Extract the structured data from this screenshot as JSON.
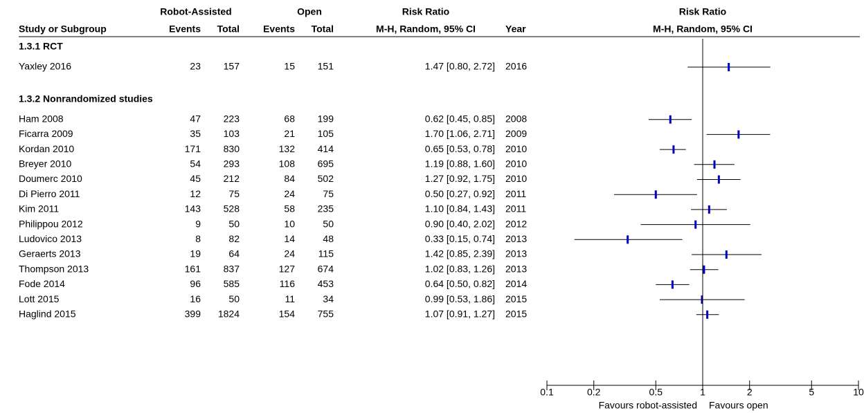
{
  "chart_data": {
    "type": "forest",
    "title": "Risk Ratio",
    "subtitle": "M-H, Random, 95% CI",
    "header": {
      "group1": "Robot-Assisted",
      "group2": "Open",
      "effect": "Risk Ratio",
      "study": "Study or Subgroup",
      "events1": "Events",
      "total1": "Total",
      "events2": "Events",
      "total2": "Total",
      "method": "M-H, Random, 95% CI",
      "year": "Year"
    },
    "groups": [
      {
        "name": "1.3.1 RCT",
        "studies": [
          {
            "name": "Yaxley 2016",
            "events1": 23,
            "total1": 157,
            "events2": 15,
            "total2": 151,
            "rr": 1.47,
            "lo": 0.8,
            "hi": 2.72,
            "ci_label": "1.47 [0.80, 2.72]",
            "year": 2016
          }
        ]
      },
      {
        "name": "1.3.2 Nonrandomized studies",
        "studies": [
          {
            "name": "Ham 2008",
            "events1": 47,
            "total1": 223,
            "events2": 68,
            "total2": 199,
            "rr": 0.62,
            "lo": 0.45,
            "hi": 0.85,
            "ci_label": "0.62 [0.45, 0.85]",
            "year": 2008
          },
          {
            "name": "Ficarra 2009",
            "events1": 35,
            "total1": 103,
            "events2": 21,
            "total2": 105,
            "rr": 1.7,
            "lo": 1.06,
            "hi": 2.71,
            "ci_label": "1.70 [1.06, 2.71]",
            "year": 2009
          },
          {
            "name": "Kordan 2010",
            "events1": 171,
            "total1": 830,
            "events2": 132,
            "total2": 414,
            "rr": 0.65,
            "lo": 0.53,
            "hi": 0.78,
            "ci_label": "0.65 [0.53, 0.78]",
            "year": 2010
          },
          {
            "name": "Breyer 2010",
            "events1": 54,
            "total1": 293,
            "events2": 108,
            "total2": 695,
            "rr": 1.19,
            "lo": 0.88,
            "hi": 1.6,
            "ci_label": "1.19 [0.88, 1.60]",
            "year": 2010
          },
          {
            "name": "Doumerc 2010",
            "events1": 45,
            "total1": 212,
            "events2": 84,
            "total2": 502,
            "rr": 1.27,
            "lo": 0.92,
            "hi": 1.75,
            "ci_label": "1.27 [0.92, 1.75]",
            "year": 2010
          },
          {
            "name": "Di Pierro 2011",
            "events1": 12,
            "total1": 75,
            "events2": 24,
            "total2": 75,
            "rr": 0.5,
            "lo": 0.27,
            "hi": 0.92,
            "ci_label": "0.50 [0.27, 0.92]",
            "year": 2011
          },
          {
            "name": "Kim 2011",
            "events1": 143,
            "total1": 528,
            "events2": 58,
            "total2": 235,
            "rr": 1.1,
            "lo": 0.84,
            "hi": 1.43,
            "ci_label": "1.10 [0.84, 1.43]",
            "year": 2011
          },
          {
            "name": "Philippou 2012",
            "events1": 9,
            "total1": 50,
            "events2": 10,
            "total2": 50,
            "rr": 0.9,
            "lo": 0.4,
            "hi": 2.02,
            "ci_label": "0.90 [0.40, 2.02]",
            "year": 2012
          },
          {
            "name": "Ludovico 2013",
            "events1": 8,
            "total1": 82,
            "events2": 14,
            "total2": 48,
            "rr": 0.33,
            "lo": 0.15,
            "hi": 0.74,
            "ci_label": "0.33 [0.15, 0.74]",
            "year": 2013
          },
          {
            "name": "Geraerts 2013",
            "events1": 19,
            "total1": 64,
            "events2": 24,
            "total2": 115,
            "rr": 1.42,
            "lo": 0.85,
            "hi": 2.39,
            "ci_label": "1.42 [0.85, 2.39]",
            "year": 2013
          },
          {
            "name": "Thompson 2013",
            "events1": 161,
            "total1": 837,
            "events2": 127,
            "total2": 674,
            "rr": 1.02,
            "lo": 0.83,
            "hi": 1.26,
            "ci_label": "1.02 [0.83, 1.26]",
            "year": 2013
          },
          {
            "name": "Fode 2014",
            "events1": 96,
            "total1": 585,
            "events2": 116,
            "total2": 453,
            "rr": 0.64,
            "lo": 0.5,
            "hi": 0.82,
            "ci_label": "0.64 [0.50, 0.82]",
            "year": 2014
          },
          {
            "name": "Lott 2015",
            "events1": 16,
            "total1": 50,
            "events2": 11,
            "total2": 34,
            "rr": 0.99,
            "lo": 0.53,
            "hi": 1.86,
            "ci_label": "0.99 [0.53, 1.86]",
            "year": 2015
          },
          {
            "name": "Haglind 2015",
            "events1": 399,
            "total1": 1824,
            "events2": 154,
            "total2": 755,
            "rr": 1.07,
            "lo": 0.91,
            "hi": 1.27,
            "ci_label": "1.07 [0.91, 1.27]",
            "year": 2015
          }
        ]
      }
    ],
    "xlim": [
      0.1,
      10
    ],
    "xticks": [
      0.1,
      0.2,
      0.5,
      1,
      2,
      5,
      10
    ],
    "log_x": true,
    "left_label": "Favours robot-assisted",
    "right_label": "Favours open",
    "color": "#0000c0"
  }
}
